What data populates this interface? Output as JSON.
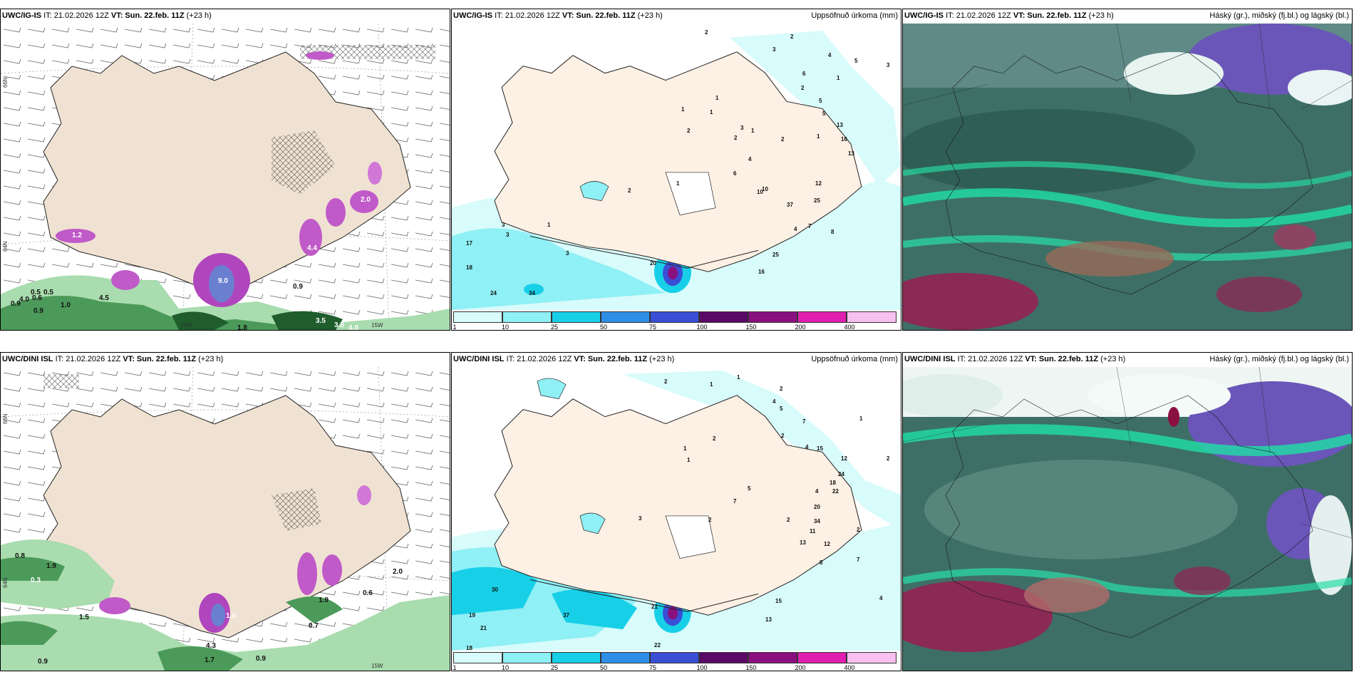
{
  "panels": {
    "tl": {
      "model": "UWC/IG-IS",
      "issue": "IT: 21.02.2026 12Z",
      "valid_label": "VT:",
      "valid": "Sun. 22.feb. 11Z",
      "lead": "(+23 h)",
      "title": ""
    },
    "tm": {
      "model": "UWC/IG-IS",
      "issue": "IT: 21.02.2026 12Z",
      "valid_label": "VT:",
      "valid": "Sun. 22.feb. 11Z",
      "lead": "(+23 h)",
      "title": "Uppsöfnuð úrkoma (mm)"
    },
    "tr": {
      "model": "UWC/IG-IS",
      "issue": "IT: 21.02.2026 12Z",
      "valid_label": "VT:",
      "valid": "Sun. 22.feb. 11Z",
      "lead": "(+23 h)",
      "title": "Háský (gr.), miðský (fj.bl.) og lágský (bl.)"
    },
    "bl": {
      "model": "UWC/DINI ISL",
      "issue": "IT: 21.02.2026 12Z",
      "valid_label": "VT:",
      "valid": "Sun. 22.feb. 11Z",
      "lead": "(+23 h)",
      "title": ""
    },
    "bm": {
      "model": "UWC/DINI ISL",
      "issue": "IT: 21.02.2026 12Z",
      "valid_label": "VT:",
      "valid": "Sun. 22.feb. 11Z",
      "lead": "(+23 h)",
      "title": "Uppsöfnuð úrkoma (mm)"
    },
    "br": {
      "model": "UWC/DINI ISL",
      "issue": "IT: 21.02.2026 12Z",
      "valid_label": "VT:",
      "valid": "Sun. 22.feb. 11Z",
      "lead": "(+23 h)",
      "title": "Háský (gr.), miðský (fj.bl.) og lágský (bl.)"
    }
  },
  "axes": {
    "lon_20w": "20W",
    "lon_15w": "15W",
    "lat_66n": "66N",
    "lat_64n": "64N"
  },
  "precip_colorbar": {
    "ticks": [
      "1",
      "10",
      "25",
      "50",
      "75",
      "100",
      "150",
      "200",
      "400"
    ],
    "colors": [
      "#d8fbfb",
      "#8ff0f5",
      "#18cfe8",
      "#2f8fe6",
      "#3a4fd6",
      "#5a0a66",
      "#8a1080",
      "#e01fb0",
      "#f7c0f0"
    ]
  },
  "labels_tl": [
    "1.2",
    "0.5",
    "0.5",
    "0.9",
    "4.0",
    "0.6",
    "0.9",
    "4.5",
    "1.0",
    "9.0",
    "0.9",
    "3.5",
    "3.8",
    "4.0",
    "1.8",
    "4.4",
    "2.0"
  ],
  "labels_bl": [
    "0.8",
    "1.9",
    "0.3",
    "1.5",
    "0.9",
    "4.3",
    "1.7",
    "0.9",
    "0.7",
    "1.9",
    "0.6",
    "2.0",
    "1.0"
  ],
  "labels_tm": [
    "2",
    "2",
    "3",
    "4",
    "5",
    "3",
    "1",
    "2",
    "1",
    "1",
    "2",
    "6",
    "5",
    "5",
    "1",
    "3",
    "13",
    "16",
    "10",
    "1",
    "2",
    "1",
    "2",
    "4",
    "6",
    "10",
    "13",
    "25",
    "37",
    "4",
    "7",
    "8",
    "25",
    "16",
    "12",
    "17",
    "18",
    "3",
    "3",
    "1",
    "3",
    "24",
    "34",
    "20",
    "2",
    "1"
  ],
  "labels_bm": [
    "2",
    "1",
    "1",
    "2",
    "4",
    "5",
    "7",
    "1",
    "2",
    "4",
    "2",
    "1",
    "1",
    "15",
    "12",
    "2",
    "24",
    "18",
    "22",
    "4",
    "20",
    "34",
    "11",
    "13",
    "12",
    "2",
    "7",
    "8",
    "4",
    "5",
    "7",
    "15",
    "13",
    "30",
    "19",
    "21",
    "37",
    "22",
    "18",
    "21",
    "2",
    "3",
    "2"
  ]
}
